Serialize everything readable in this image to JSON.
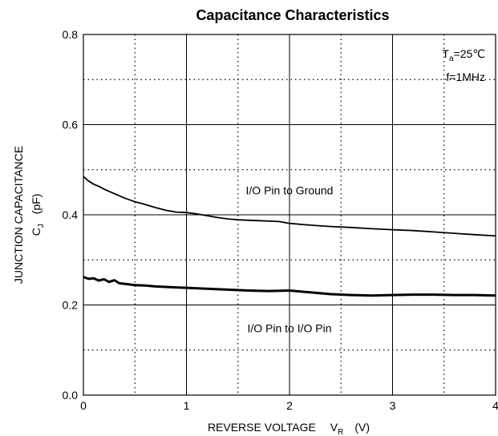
{
  "chart_data": {
    "type": "line",
    "title": "Capacitance Characteristics",
    "xlabel": {
      "main": "REVERSE VOLTAGE",
      "symbol": "V",
      "subscript": "R",
      "unit": "(V)"
    },
    "ylabel": {
      "main": "JUNCTION CAPACITANCE",
      "symbol": "C",
      "subscript": "J",
      "unit": "(pF)"
    },
    "xlim": [
      0,
      4
    ],
    "ylim": [
      0,
      0.8
    ],
    "x_ticks": [
      0,
      1,
      2,
      3,
      4
    ],
    "x_tick_labels": [
      "0",
      "1",
      "2",
      "3",
      "4"
    ],
    "y_ticks": [
      0,
      0.2,
      0.4,
      0.6,
      0.8
    ],
    "y_tick_labels": [
      "0.0",
      "0.2",
      "0.4",
      "0.6",
      "0.8"
    ],
    "grid": {
      "major": "solid",
      "minor": "dotted"
    },
    "conditions": {
      "temp_symbol": "T",
      "temp_subscript": "a",
      "temp_value": "=25℃",
      "frequency": "f=1MHz"
    },
    "annotations": [
      {
        "text": "I/O Pin to Ground",
        "x": 2.0,
        "y": 0.445
      },
      {
        "text": "I/O Pin to I/O Pin",
        "x": 2.0,
        "y": 0.14
      }
    ],
    "series": [
      {
        "x": [
          0,
          0.05,
          0.1,
          0.15,
          0.2,
          0.25,
          0.3,
          0.4,
          0.5,
          0.6,
          0.7,
          0.8,
          0.9,
          1.0,
          1.1,
          1.2,
          1.3,
          1.4,
          1.5,
          1.6,
          1.7,
          1.8,
          1.9,
          2.0,
          2.2,
          2.4,
          2.6,
          2.8,
          3.0,
          3.2,
          3.4,
          3.6,
          3.8,
          4.0
        ],
        "y": [
          0.485,
          0.475,
          0.468,
          0.463,
          0.457,
          0.452,
          0.447,
          0.437,
          0.429,
          0.423,
          0.416,
          0.41,
          0.406,
          0.405,
          0.402,
          0.398,
          0.394,
          0.391,
          0.389,
          0.388,
          0.387,
          0.386,
          0.385,
          0.381,
          0.377,
          0.374,
          0.372,
          0.369,
          0.367,
          0.365,
          0.362,
          0.359,
          0.356,
          0.353
        ]
      },
      {
        "x": [
          0,
          0.05,
          0.1,
          0.15,
          0.2,
          0.25,
          0.3,
          0.35,
          0.4,
          0.5,
          0.6,
          0.7,
          0.8,
          0.9,
          1.0,
          1.2,
          1.4,
          1.6,
          1.8,
          2.0,
          2.2,
          2.4,
          2.6,
          2.8,
          3.0,
          3.2,
          3.4,
          3.6,
          3.8,
          4.0
        ],
        "y": [
          0.262,
          0.258,
          0.259,
          0.254,
          0.257,
          0.251,
          0.255,
          0.248,
          0.247,
          0.244,
          0.243,
          0.241,
          0.24,
          0.239,
          0.238,
          0.236,
          0.234,
          0.232,
          0.231,
          0.232,
          0.228,
          0.224,
          0.222,
          0.221,
          0.222,
          0.223,
          0.223,
          0.222,
          0.222,
          0.221
        ]
      }
    ]
  }
}
